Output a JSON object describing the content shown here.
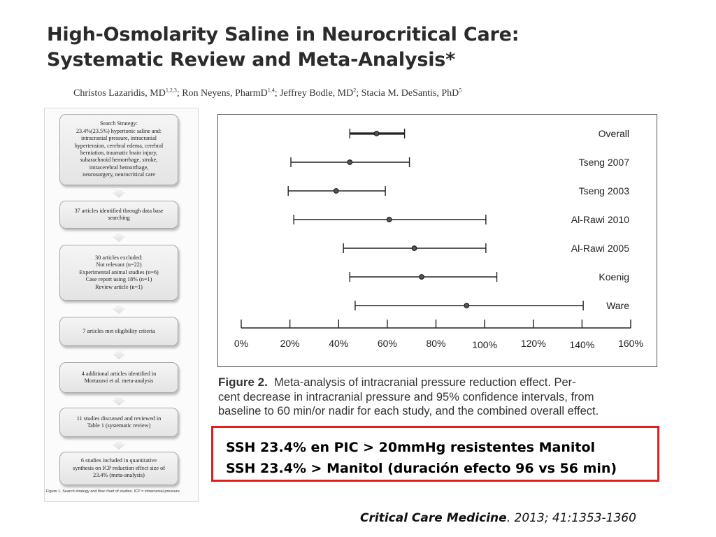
{
  "title": {
    "line1": "High-Osmolarity Saline in Neurocritical Care:",
    "line2": "Systematic Review and Meta-Analysis*"
  },
  "authors": [
    {
      "name": "Christos Lazaridis, MD",
      "sup": "1,2,3",
      "sep": "; "
    },
    {
      "name": "Ron Neyens, PharmD",
      "sup": "1,4",
      "sep": "; "
    },
    {
      "name": "Jeffrey Bodle, MD",
      "sup": "2",
      "sep": "; "
    },
    {
      "name": "Stacia M. DeSantis, PhD",
      "sup": "5",
      "sep": ""
    }
  ],
  "flowchart": {
    "boxes": [
      [
        "Search Strategy:",
        "23.4%(23.5%) hypertonic saline and:",
        "intracranial pressure, intracranial",
        "hypertension, cerebral edema, cerebral",
        "herniation, traumatic brain injury,",
        "subarachnoid hemorrhage, stroke,",
        "intracerebral hemorrhage,",
        "neurosurgery, neurocritical care"
      ],
      [
        "37 articles identified through data base",
        "searching"
      ],
      [
        "30 articles excluded:",
        "Not relevant (n=22)",
        "Experimental animal studies (n=6)",
        "Case report using 18% (n=1)",
        "Review article (n=1)"
      ],
      [
        "7 articles met eligibility criteria"
      ],
      [
        "4 additional articles identified in",
        "Mortazavi et al. meta-analysis"
      ],
      [
        "11 studies discussed and reviewed in",
        "Table 1 (systematic review)"
      ],
      [
        "6 studies included in quantitative",
        "synthesis on ICP reduction effect size of",
        "23.4% (meta-analysis)"
      ]
    ],
    "caption": "Figure 1. Search strategy and flow chart of studies. ICP = intracranial pressure."
  },
  "chart_data": {
    "type": "forest",
    "title": "",
    "xlabel": "",
    "ylabel": "",
    "xlim": [
      0,
      160
    ],
    "xticks": [
      0,
      20,
      40,
      60,
      80,
      100,
      120,
      140,
      160
    ],
    "xtick_labels": [
      "0%",
      "20%",
      "40%",
      "60%",
      "80%",
      "100%",
      "120%",
      "140%",
      "160%"
    ],
    "grid": false,
    "studies": [
      {
        "label": "Overall",
        "estimate": 55.6,
        "lower": 44.6,
        "upper": 67.1
      },
      {
        "label": "Tseng 2007",
        "estimate": 44.6,
        "lower": 20.4,
        "upper": 69.1
      },
      {
        "label": "Tseng 2003",
        "estimate": 39.0,
        "lower": 19.3,
        "upper": 59.2
      },
      {
        "label": "Al-Rawi 2010",
        "estimate": 60.8,
        "lower": 21.6,
        "upper": 100.5
      },
      {
        "label": "Al-Rawi 2005",
        "estimate": 71.1,
        "lower": 42.0,
        "upper": 100.5
      },
      {
        "label": "Koenig",
        "estimate": 74.1,
        "lower": 44.6,
        "upper": 105.0
      },
      {
        "label": "Ware",
        "estimate": 92.6,
        "lower": 46.8,
        "upper": 140.5
      }
    ]
  },
  "figure2": {
    "label": "Figure 2.",
    "line1": "Meta-analysis of intracranial pressure reduction effect. Per-",
    "line2": "cent decrease in intracranial pressure and 95% confidence intervals, from",
    "line3": "baseline to 60 min/or nadir for each study, and the combined overall effect."
  },
  "highlight": {
    "line1": "SSH 23.4% en PIC > 20mmHg resistentes Manitol",
    "line2": "SSH 23.4% > Manitol (duración efecto 96 vs 56 min)",
    "border_color": "#e02020"
  },
  "citation": {
    "journal": "Critical Care Medicine",
    "details": ". 2013; 41:1353-1360"
  }
}
